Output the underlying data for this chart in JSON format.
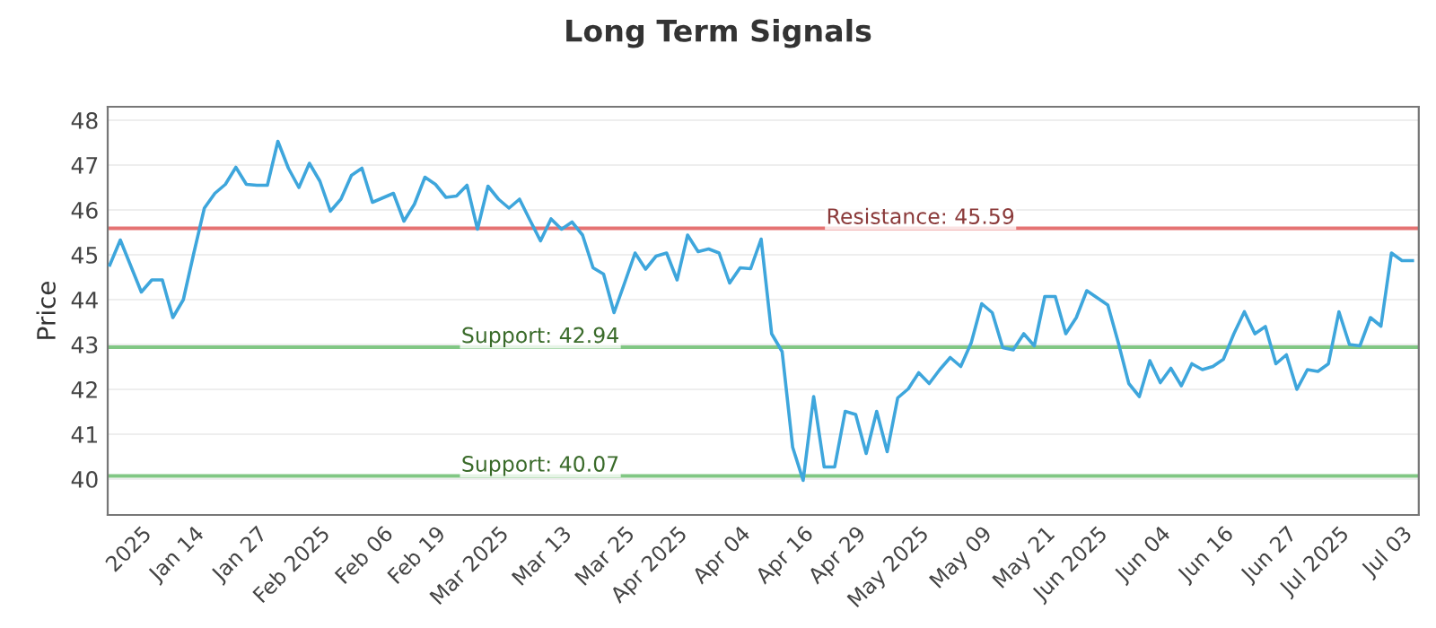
{
  "chart_data": {
    "type": "line",
    "title": "Long Term Signals",
    "ylabel": "Price",
    "categories": [
      null,
      null,
      null,
      "2025",
      null,
      null,
      null,
      null,
      "Jan 14",
      null,
      null,
      null,
      null,
      null,
      "Jan 27",
      null,
      null,
      null,
      null,
      null,
      "Feb 2025",
      null,
      null,
      null,
      null,
      null,
      "Feb 06",
      null,
      null,
      null,
      null,
      "Feb 19",
      null,
      null,
      null,
      null,
      null,
      "Mar 2025",
      null,
      null,
      null,
      null,
      null,
      "Mar 13",
      null,
      null,
      null,
      null,
      null,
      "Mar 25",
      null,
      null,
      null,
      null,
      "Apr 2025",
      null,
      null,
      null,
      null,
      null,
      "Apr 04",
      null,
      null,
      null,
      null,
      null,
      "Apr 16",
      null,
      null,
      null,
      null,
      "Apr 29",
      null,
      null,
      null,
      null,
      null,
      "May 2025",
      null,
      null,
      null,
      null,
      null,
      "May 09",
      null,
      null,
      null,
      null,
      null,
      "May 21",
      null,
      null,
      null,
      null,
      "Jun 2025",
      null,
      null,
      null,
      null,
      null,
      "Jun 04",
      null,
      null,
      null,
      null,
      null,
      "Jun 16",
      null,
      null,
      null,
      null,
      null,
      "Jun 27",
      null,
      null,
      null,
      null,
      "Jul 2025",
      null,
      null,
      null,
      null,
      null,
      "Jul 03",
      null
    ],
    "series": [
      {
        "color": "#3ea6dc",
        "values": [
          44.77,
          45.33,
          44.75,
          44.17,
          44.44,
          44.44,
          43.6,
          44.0,
          45.04,
          46.04,
          46.37,
          46.57,
          46.95,
          46.57,
          46.55,
          46.55,
          47.53,
          46.93,
          46.5,
          47.04,
          46.64,
          45.97,
          46.24,
          46.77,
          46.93,
          46.17,
          46.27,
          46.37,
          45.75,
          46.13,
          46.73,
          46.57,
          46.28,
          46.31,
          46.55,
          45.57,
          46.53,
          46.24,
          46.04,
          46.24,
          45.77,
          45.31,
          45.8,
          45.57,
          45.73,
          45.44,
          44.71,
          44.57,
          43.71,
          44.37,
          45.04,
          44.68,
          44.97,
          45.04,
          44.44,
          45.44,
          45.07,
          45.13,
          45.04,
          44.37,
          44.71,
          44.69,
          45.35,
          43.24,
          42.84,
          40.71,
          39.97,
          41.84,
          40.27,
          40.27,
          41.51,
          41.44,
          40.57,
          41.51,
          40.61,
          41.81,
          42.01,
          42.37,
          42.13,
          42.44,
          42.71,
          42.51,
          43.04,
          43.91,
          43.71,
          42.93,
          42.88,
          43.24,
          42.97,
          44.07,
          44.07,
          43.24,
          43.6,
          44.2,
          44.04,
          43.88,
          43.04,
          42.13,
          41.84,
          42.64,
          42.15,
          42.47,
          42.08,
          42.57,
          42.44,
          42.51,
          42.67,
          43.24,
          43.73,
          43.24,
          43.4,
          42.57,
          42.77,
          42.0,
          42.44,
          42.4,
          42.57,
          43.73,
          43.0,
          42.97,
          43.6,
          43.41,
          45.04,
          44.87,
          44.87
        ]
      }
    ],
    "ylim": [
      39.2,
      48.3
    ],
    "yticks": [
      40,
      41,
      42,
      43,
      44,
      45,
      46,
      47,
      48
    ],
    "grid": "y",
    "marker": "none",
    "line_style": "solid",
    "ref_lines": [
      {
        "axis": "y",
        "value": 45.59,
        "label": "Resistance: 45.59",
        "color": "#e57373"
      },
      {
        "axis": "y",
        "value": 42.94,
        "label": "Support: 42.94",
        "color": "#81c784"
      },
      {
        "axis": "y",
        "value": 40.07,
        "label": "Support: 40.07",
        "color": "#81c784"
      }
    ]
  }
}
